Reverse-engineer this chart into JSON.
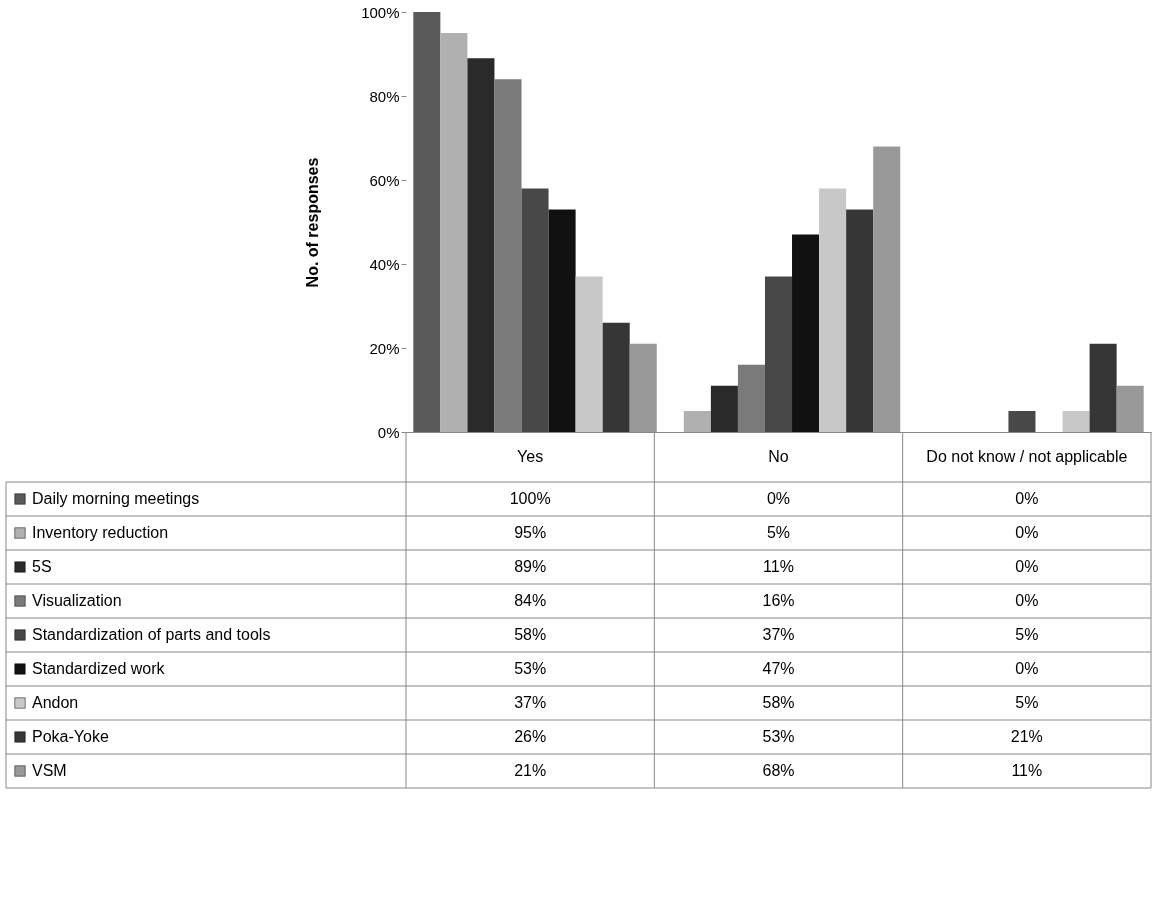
{
  "chart_data": {
    "type": "bar",
    "ylabel": "No. of responses",
    "categories": [
      "Yes",
      "No",
      "Do not know / not applicable"
    ],
    "ylim": [
      0,
      100
    ],
    "yticks": [
      {
        "value": 0,
        "label": "0%"
      },
      {
        "value": 20,
        "label": "20%"
      },
      {
        "value": 40,
        "label": "40%"
      },
      {
        "value": 60,
        "label": "60%"
      },
      {
        "value": 80,
        "label": "80%"
      },
      {
        "value": 100,
        "label": "100%"
      }
    ],
    "grid": false,
    "legend": "bottom left",
    "series": [
      {
        "name": "Daily morning meetings",
        "color": "#5a5a5a",
        "values": [
          100,
          0,
          0
        ],
        "value_labels": [
          "100%",
          "0%",
          "0%"
        ]
      },
      {
        "name": "Inventory reduction",
        "color": "#b0b0b0",
        "values": [
          95,
          5,
          0
        ],
        "value_labels": [
          "95%",
          "5%",
          "0%"
        ]
      },
      {
        "name": "5S",
        "color": "#2a2a2a",
        "values": [
          89,
          11,
          0
        ],
        "value_labels": [
          "89%",
          "11%",
          "0%"
        ]
      },
      {
        "name": "Visualization",
        "color": "#7a7a7a",
        "values": [
          84,
          16,
          0
        ],
        "value_labels": [
          "84%",
          "16%",
          "0%"
        ]
      },
      {
        "name": "Standardization of parts and tools",
        "color": "#484848",
        "values": [
          58,
          37,
          5
        ],
        "value_labels": [
          "58%",
          "37%",
          "5%"
        ]
      },
      {
        "name": "Standardized work",
        "color": "#111111",
        "values": [
          53,
          47,
          0
        ],
        "value_labels": [
          "53%",
          "47%",
          "0%"
        ]
      },
      {
        "name": "Andon",
        "color": "#c8c8c8",
        "values": [
          37,
          58,
          5
        ],
        "value_labels": [
          "37%",
          "58%",
          "5%"
        ]
      },
      {
        "name": "Poka-Yoke",
        "color": "#363636",
        "values": [
          26,
          53,
          21
        ],
        "value_labels": [
          "26%",
          "53%",
          "21%"
        ]
      },
      {
        "name": "VSM",
        "color": "#999999",
        "values": [
          21,
          68,
          11
        ],
        "value_labels": [
          "21%",
          "68%",
          "11%"
        ]
      }
    ]
  }
}
